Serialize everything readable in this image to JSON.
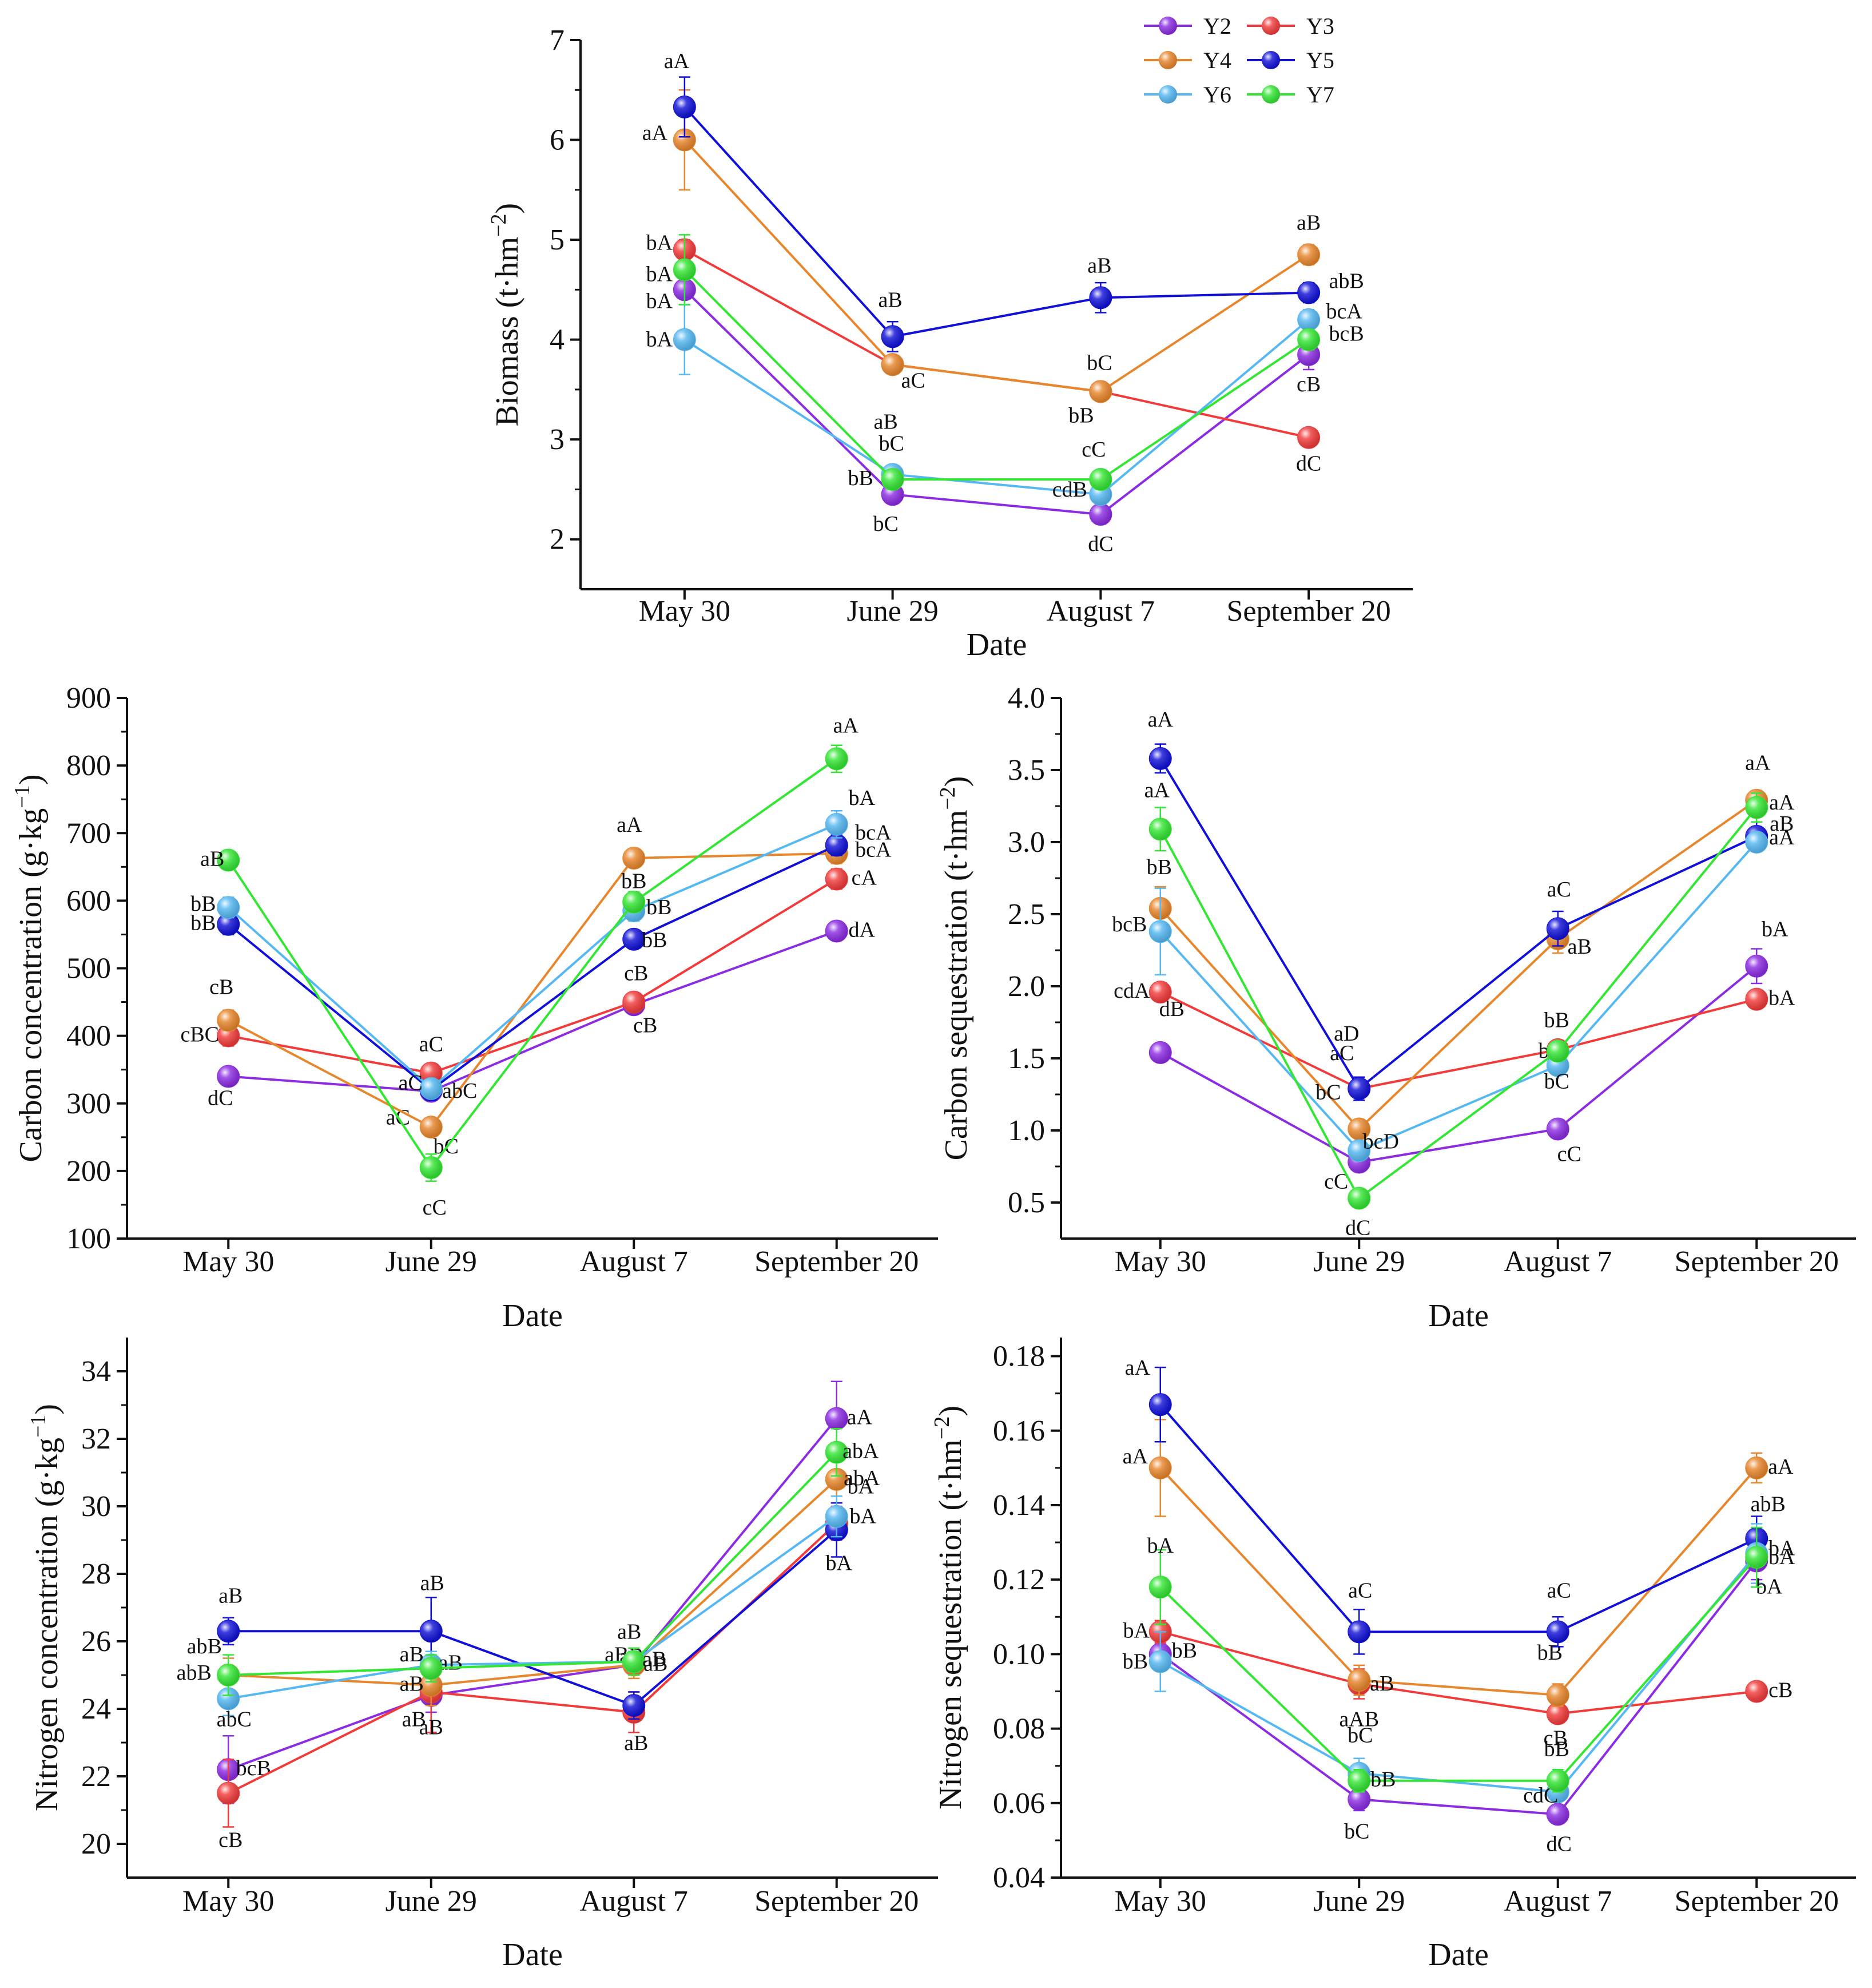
{
  "series_styles": {
    "Y2": "#8B2BE2",
    "Y3": "#F23A3A",
    "Y4": "#E8862B",
    "Y5": "#1010D8",
    "Y6": "#55B8F2",
    "Y7": "#33E633"
  },
  "legend": {
    "title": "",
    "entries": [
      "Y2",
      "Y3",
      "Y4",
      "Y5",
      "Y6",
      "Y7"
    ]
  },
  "chart_data": [
    {
      "id": "biomass",
      "type": "line",
      "title": "",
      "xlabel": "Date",
      "ylabel": "Biomass (t·hm⁻²)",
      "categories": [
        "May 30",
        "June 29",
        "August 7",
        "September 20"
      ],
      "ylim": [
        1.5,
        7
      ],
      "yticks": [
        "2",
        "3",
        "4",
        "5",
        "6",
        "7"
      ],
      "legend_position": "top-right",
      "series": [
        {
          "name": "Y2",
          "values": [
            4.5,
            2.45,
            2.25,
            3.85
          ],
          "errors": [
            0.15,
            0.05,
            0.05,
            0.15
          ],
          "labels": [
            "bA",
            "bC",
            "dC",
            "cB"
          ]
        },
        {
          "name": "Y3",
          "values": [
            4.9,
            3.75,
            3.48,
            3.02
          ],
          "errors": [
            0.1,
            0.05,
            0.05,
            0.05
          ],
          "labels": [
            "bA",
            "aC",
            "bB",
            "dC"
          ]
        },
        {
          "name": "Y4",
          "values": [
            6.0,
            3.75,
            3.48,
            4.85
          ],
          "errors": [
            0.5,
            0.05,
            0.05,
            0.1
          ],
          "labels": [
            "aA",
            "aB",
            "bC",
            "aB"
          ]
        },
        {
          "name": "Y5",
          "values": [
            6.33,
            4.03,
            4.42,
            4.47
          ],
          "errors": [
            0.3,
            0.15,
            0.15,
            0.1
          ],
          "labels": [
            "aA",
            "aB",
            "aB",
            "abB"
          ]
        },
        {
          "name": "Y6",
          "values": [
            4.0,
            2.65,
            2.45,
            4.2
          ],
          "errors": [
            0.35,
            0.05,
            0.05,
            0.1
          ],
          "labels": [
            "bA",
            "bC",
            "cdB",
            "bcA"
          ]
        },
        {
          "name": "Y7",
          "values": [
            4.7,
            2.6,
            2.6,
            4.0
          ],
          "errors": [
            0.35,
            0.05,
            0.05,
            0.1
          ],
          "labels": [
            "bA",
            "bB",
            "cC",
            "bcB"
          ]
        }
      ]
    },
    {
      "id": "carbon-concentration",
      "type": "line",
      "title": "",
      "xlabel": "Date",
      "ylabel": "Carbon concentration (g·kg⁻¹)",
      "categories": [
        "May 30",
        "June 29",
        "August 7",
        "September 20"
      ],
      "ylim": [
        100,
        900
      ],
      "yticks": [
        "100",
        "200",
        "300",
        "400",
        "500",
        "600",
        "700",
        "800",
        "900"
      ],
      "series": [
        {
          "name": "Y2",
          "values": [
            340,
            318,
            446,
            555
          ],
          "errors": [
            10,
            10,
            10,
            10
          ],
          "labels": [
            "dC",
            "aC",
            "cB",
            "dA"
          ]
        },
        {
          "name": "Y3",
          "values": [
            400,
            345,
            450,
            632
          ],
          "errors": [
            15,
            10,
            10,
            15
          ],
          "labels": [
            "cBC",
            "aC",
            "cB",
            "cA"
          ]
        },
        {
          "name": "Y4",
          "values": [
            423,
            265,
            663,
            670
          ],
          "errors": [
            15,
            10,
            10,
            15
          ],
          "labels": [
            "cB",
            "bC",
            "aA",
            "bcA"
          ]
        },
        {
          "name": "Y5",
          "values": [
            565,
            320,
            543,
            682
          ],
          "errors": [
            15,
            15,
            10,
            15
          ],
          "labels": [
            "bB",
            "abC",
            "bB",
            "bcA"
          ]
        },
        {
          "name": "Y6",
          "values": [
            590,
            322,
            585,
            713
          ],
          "errors": [
            15,
            10,
            15,
            20
          ],
          "labels": [
            "bB",
            "aC",
            "bB",
            "bA"
          ]
        },
        {
          "name": "Y7",
          "values": [
            660,
            205,
            598,
            810
          ],
          "errors": [
            10,
            20,
            15,
            20
          ],
          "labels": [
            "aB",
            "cC",
            "bB",
            "aA"
          ]
        }
      ]
    },
    {
      "id": "carbon-sequestration",
      "type": "line",
      "title": "",
      "xlabel": "Date",
      "ylabel": "Carbon sequestration (t·hm⁻²)",
      "categories": [
        "May 30",
        "June 29",
        "August 7",
        "September 20"
      ],
      "ylim": [
        0.25,
        4.0
      ],
      "yticks": [
        "0.5",
        "1.0",
        "1.5",
        "2.0",
        "2.5",
        "3.0",
        "3.5",
        "4.0"
      ],
      "series": [
        {
          "name": "Y2",
          "values": [
            1.54,
            0.78,
            1.01,
            2.14
          ],
          "errors": [
            0.05,
            0.03,
            0.03,
            0.12
          ],
          "labels": [
            "dB",
            "cC",
            "cC",
            "bA"
          ]
        },
        {
          "name": "Y3",
          "values": [
            1.96,
            1.29,
            1.56,
            1.91
          ],
          "errors": [
            0.05,
            0.05,
            0.05,
            0.05
          ],
          "labels": [
            "cdA",
            "aC",
            "bB",
            "bA"
          ]
        },
        {
          "name": "Y4",
          "values": [
            2.54,
            1.01,
            2.33,
            3.29
          ],
          "errors": [
            0.15,
            0.05,
            0.1,
            0.05
          ],
          "labels": [
            "bB",
            "bC",
            "aB",
            "aA"
          ]
        },
        {
          "name": "Y5",
          "values": [
            3.58,
            1.29,
            2.4,
            3.04
          ],
          "errors": [
            0.1,
            0.08,
            0.12,
            0.1
          ],
          "labels": [
            "aA",
            "aD",
            "aC",
            "aB"
          ]
        },
        {
          "name": "Y6",
          "values": [
            2.38,
            0.86,
            1.45,
            3.0
          ],
          "errors": [
            0.3,
            0.05,
            0.05,
            0.05
          ],
          "labels": [
            "bcB",
            "bcD",
            "bC",
            "aA"
          ]
        },
        {
          "name": "Y7",
          "values": [
            3.09,
            0.53,
            1.55,
            3.24
          ],
          "errors": [
            0.15,
            0.05,
            0.05,
            0.1
          ],
          "labels": [
            "aA",
            "dC",
            "bB",
            "aA"
          ]
        }
      ]
    },
    {
      "id": "nitrogen-concentration",
      "type": "line",
      "title": "",
      "xlabel": "Date",
      "ylabel": "Nitrogen concentration (g·kg⁻¹)",
      "categories": [
        "May 30",
        "June 29",
        "August 7",
        "September 20"
      ],
      "ylim": [
        19,
        35
      ],
      "yticks": [
        "20",
        "22",
        "24",
        "26",
        "28",
        "30",
        "32",
        "34"
      ],
      "series": [
        {
          "name": "Y2",
          "values": [
            22.2,
            24.4,
            25.3,
            32.6
          ],
          "errors": [
            1.0,
            0.5,
            0.3,
            1.1
          ],
          "labels": [
            "bcB",
            "aB",
            "aB",
            "aA"
          ]
        },
        {
          "name": "Y3",
          "values": [
            21.5,
            24.5,
            23.9,
            29.5
          ],
          "errors": [
            1.0,
            1.2,
            0.6,
            0.5
          ],
          "labels": [
            "cB",
            "aB",
            "aB",
            "bA"
          ]
        },
        {
          "name": "Y4",
          "values": [
            25.0,
            24.7,
            25.3,
            30.8
          ],
          "errors": [
            0.5,
            0.6,
            0.4,
            0.7
          ],
          "labels": [
            "abB",
            "aB",
            "aB",
            "abA"
          ]
        },
        {
          "name": "Y5",
          "values": [
            26.3,
            26.3,
            24.1,
            29.3
          ],
          "errors": [
            0.4,
            1.0,
            0.4,
            0.8
          ],
          "labels": [
            "aB",
            "aB",
            "aB",
            "bA"
          ]
        },
        {
          "name": "Y6",
          "values": [
            24.3,
            25.3,
            25.4,
            29.7
          ],
          "errors": [
            0.5,
            0.4,
            0.3,
            0.6
          ],
          "labels": [
            "abC",
            "aB",
            "aB",
            "bA"
          ]
        },
        {
          "name": "Y7",
          "values": [
            25.0,
            25.2,
            25.4,
            31.6
          ],
          "errors": [
            0.6,
            0.4,
            0.4,
            0.7
          ],
          "labels": [
            "abB",
            "aB",
            "aB",
            "abA"
          ]
        }
      ]
    },
    {
      "id": "nitrogen-sequestration",
      "type": "line",
      "title": "",
      "xlabel": "Date",
      "ylabel": "Nitrogen sequestration (t·hm⁻²)",
      "categories": [
        "May 30",
        "June 29",
        "August 7",
        "September 20"
      ],
      "ylim": [
        0.04,
        0.185
      ],
      "yticks": [
        "0.04",
        "0.06",
        "0.08",
        "0.10",
        "0.12",
        "0.14",
        "0.16",
        "0.18"
      ],
      "series": [
        {
          "name": "Y2",
          "values": [
            0.1,
            0.061,
            0.057,
            0.125
          ],
          "errors": [
            0.003,
            0.003,
            0.002,
            0.005
          ],
          "labels": [
            "bB",
            "bC",
            "dC",
            "bA"
          ]
        },
        {
          "name": "Y3",
          "values": [
            0.106,
            0.092,
            0.084,
            0.09
          ],
          "errors": [
            0.003,
            0.004,
            0.002,
            0.002
          ],
          "labels": [
            "bA",
            "aAB",
            "bB",
            "cB"
          ]
        },
        {
          "name": "Y4",
          "values": [
            0.15,
            0.093,
            0.089,
            0.15
          ],
          "errors": [
            0.013,
            0.004,
            0.003,
            0.004
          ],
          "labels": [
            "aA",
            "aB",
            "bB",
            "aA"
          ]
        },
        {
          "name": "Y5",
          "values": [
            0.167,
            0.106,
            0.106,
            0.131
          ],
          "errors": [
            0.01,
            0.006,
            0.004,
            0.006
          ],
          "labels": [
            "aA",
            "aC",
            "aC",
            "abB"
          ]
        },
        {
          "name": "Y6",
          "values": [
            0.098,
            0.068,
            0.063,
            0.127
          ],
          "errors": [
            0.008,
            0.004,
            0.002,
            0.008
          ],
          "labels": [
            "bB",
            "bC",
            "cdC",
            "bA"
          ]
        },
        {
          "name": "Y7",
          "values": [
            0.118,
            0.066,
            0.066,
            0.126
          ],
          "errors": [
            0.01,
            0.003,
            0.003,
            0.008
          ],
          "labels": [
            "bA",
            "bB",
            "cB",
            "bA"
          ]
        }
      ]
    }
  ]
}
